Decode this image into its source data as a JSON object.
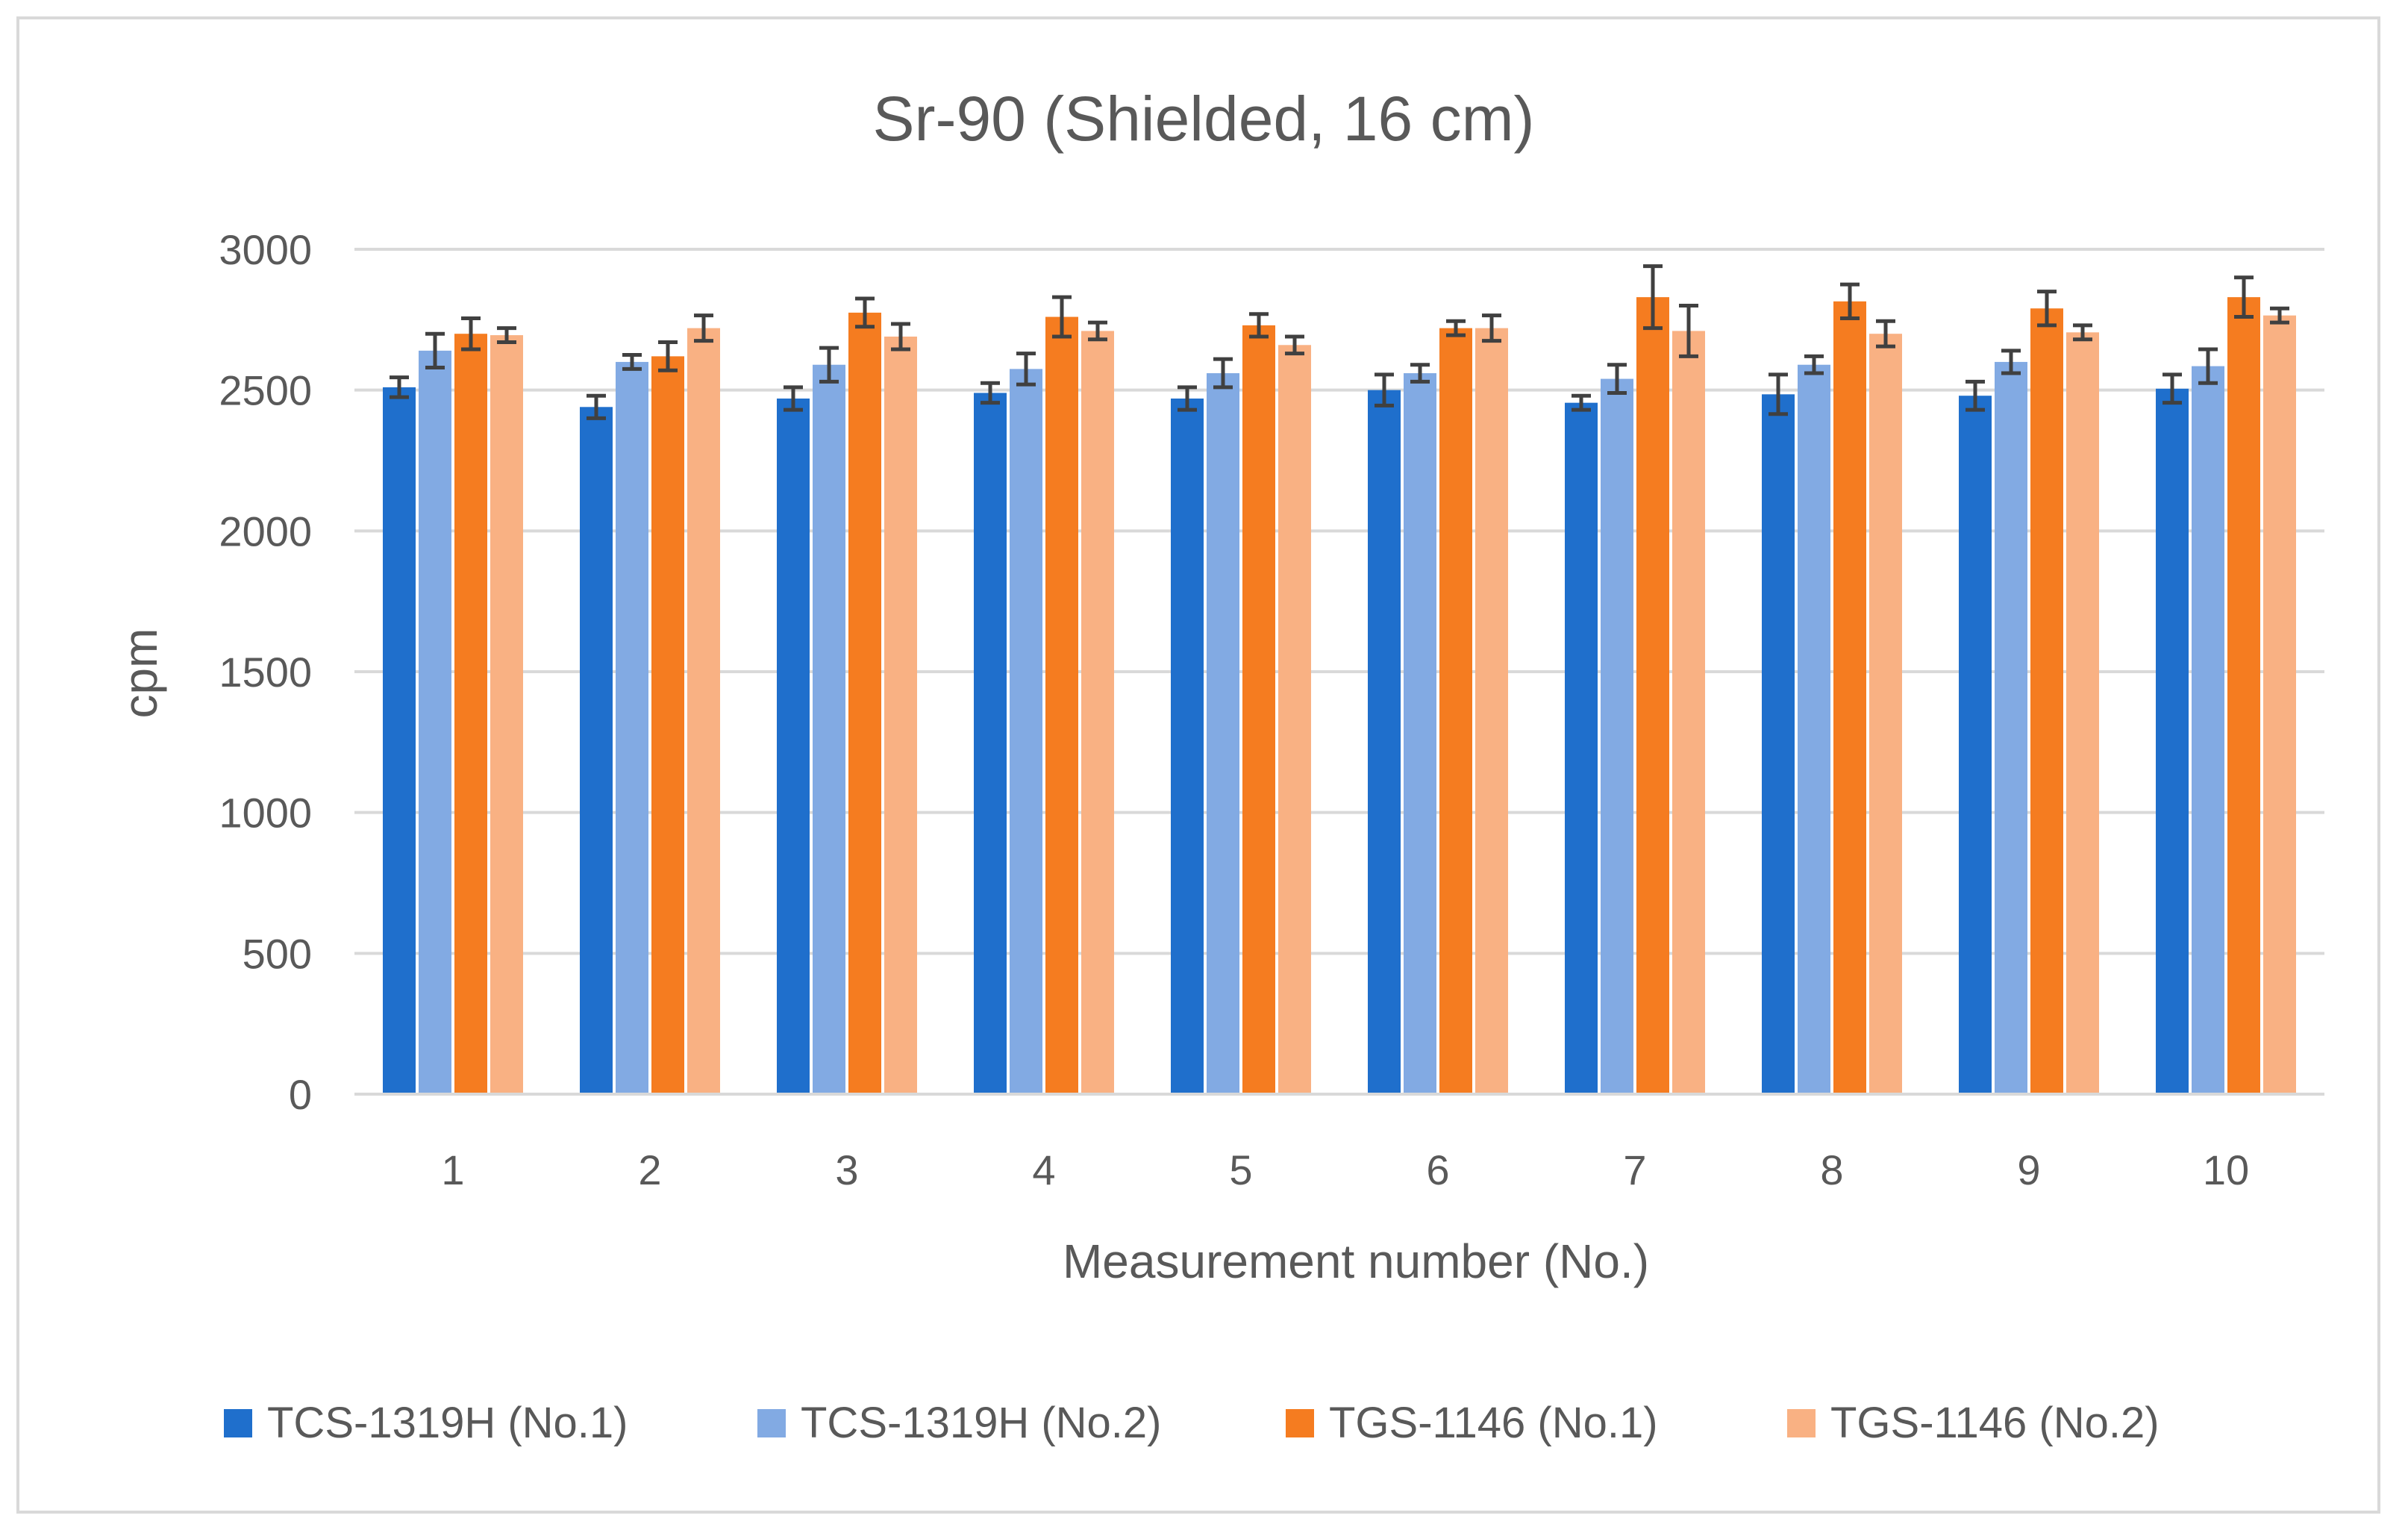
{
  "chart_data": {
    "type": "bar",
    "title": "Sr-90 (Shielded, 16 cm)",
    "xlabel": "Measurement number (No.)",
    "ylabel": "cpm",
    "ylim": [
      0,
      3000
    ],
    "yticks": [
      0,
      500,
      1000,
      1500,
      2000,
      2500,
      3000
    ],
    "categories": [
      "1",
      "2",
      "3",
      "4",
      "5",
      "6",
      "7",
      "8",
      "9",
      "10"
    ],
    "grid": true,
    "legend_position": "bottom",
    "error_bars": true,
    "series": [
      {
        "name": "TCS-1319H (No.1)",
        "color": "#1f6fcc",
        "values": [
          2510,
          2440,
          2470,
          2490,
          2470,
          2500,
          2455,
          2485,
          2480,
          2505
        ],
        "errors": [
          35,
          40,
          40,
          35,
          40,
          55,
          25,
          70,
          50,
          50
        ]
      },
      {
        "name": "TCS-1319H (No.2)",
        "color": "#82aae3",
        "values": [
          2640,
          2600,
          2590,
          2575,
          2560,
          2560,
          2540,
          2590,
          2600,
          2585
        ],
        "errors": [
          60,
          25,
          60,
          55,
          50,
          30,
          50,
          30,
          40,
          60
        ]
      },
      {
        "name": "TGS-1146 (No.1)",
        "color": "#f57c20",
        "values": [
          2700,
          2620,
          2775,
          2760,
          2730,
          2720,
          2830,
          2815,
          2790,
          2830
        ],
        "errors": [
          55,
          50,
          50,
          70,
          40,
          25,
          110,
          60,
          60,
          70
        ]
      },
      {
        "name": "TGS-1146 (No.2)",
        "color": "#f9b183",
        "values": [
          2695,
          2720,
          2690,
          2710,
          2660,
          2720,
          2710,
          2700,
          2705,
          2765
        ],
        "errors": [
          25,
          45,
          45,
          30,
          30,
          45,
          90,
          45,
          25,
          25
        ]
      }
    ]
  }
}
